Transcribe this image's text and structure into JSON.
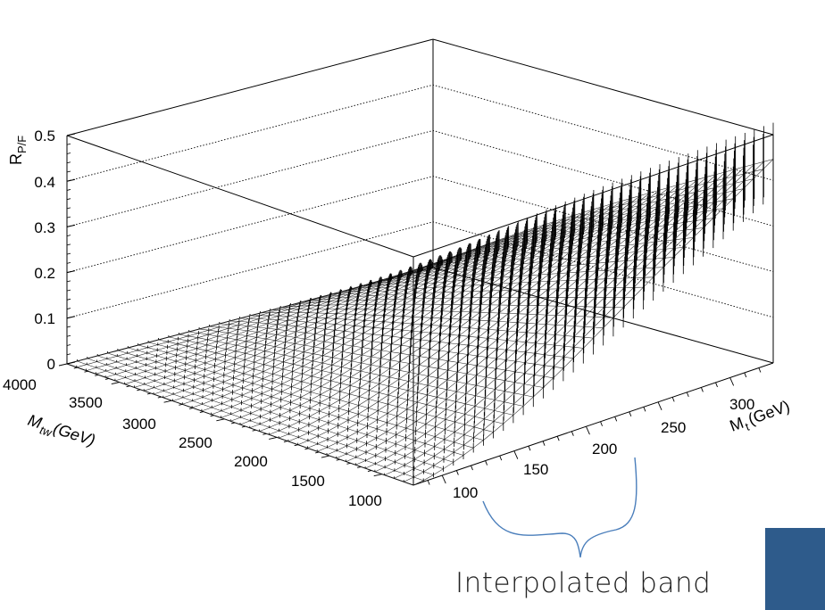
{
  "chart_data": {
    "type": "surface-3d",
    "z_axis": {
      "label_main": "R",
      "label_sub": "P/F",
      "ticks": [
        "0",
        "0.1",
        "0.2",
        "0.3",
        "0.4",
        "0.5"
      ],
      "range": [
        0,
        0.5
      ]
    },
    "mtw_axis": {
      "label_main": "M",
      "label_sub": "tw",
      "label_unit": " (GeV)",
      "ticks": [
        "4000",
        "3500",
        "3000",
        "2500",
        "2000",
        "1500",
        "1000"
      ],
      "range": [
        700,
        4000
      ]
    },
    "mt_axis": {
      "label_main": "M",
      "label_sub": "t",
      "label_unit": " (GeV)",
      "ticks": [
        "100",
        "150",
        "200",
        "250",
        "300"
      ],
      "range": [
        80,
        330
      ]
    },
    "grid": true,
    "error_bars": true,
    "surface": {
      "description_values": "R at (Mt, Mtw) corners",
      "corner_lowMt_highMtw": 0.0,
      "corner_lowMt_lowMtw": 0.0,
      "corner_highMt_lowMtw": 0.42,
      "corner_highMt_highMtw": 0.0
    },
    "annotation": "Interpolated band",
    "annotation_brace_color": "#4a7ebb",
    "accent_box_color": "#2e5b8b"
  }
}
